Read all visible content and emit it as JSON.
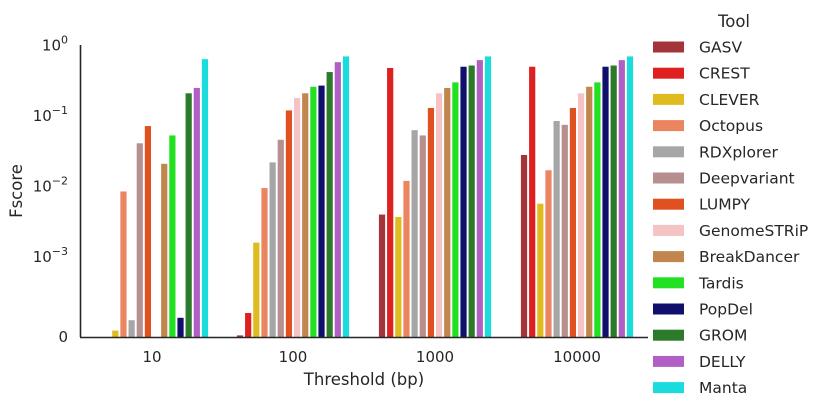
{
  "chart_data": {
    "type": "bar",
    "xlabel": "Threshold (bp)",
    "ylabel": "Fscore",
    "yscale": "symlog",
    "ylim": [
      0,
      1
    ],
    "y_ticks": [
      0,
      0.001,
      0.01,
      0.1,
      1
    ],
    "y_tick_labels": [
      {
        "base": "0",
        "exp": ""
      },
      {
        "base": "10",
        "exp": "−3"
      },
      {
        "base": "10",
        "exp": "−2"
      },
      {
        "base": "10",
        "exp": "−1"
      },
      {
        "base": "10",
        "exp": "0"
      }
    ],
    "categories": [
      "10",
      "100",
      "1000",
      "10000"
    ],
    "legend": {
      "title": "Tool",
      "position": "right"
    },
    "grid": false,
    "series": [
      {
        "name": "GASV",
        "color": "#a3343a",
        "values": [
          0,
          2e-05,
          0.004,
          0.028
        ]
      },
      {
        "name": "CREST",
        "color": "#df2020",
        "values": [
          0,
          0.0003,
          0.48,
          0.5
        ]
      },
      {
        "name": "CLEVER",
        "color": "#e0bb20",
        "values": [
          8e-05,
          0.0016,
          0.0037,
          0.0057
        ]
      },
      {
        "name": "Octopus",
        "color": "#ea8560",
        "values": [
          0.0085,
          0.0095,
          0.012,
          0.017
        ]
      },
      {
        "name": "RDXplorer",
        "color": "#a6a6a6",
        "values": [
          0.00021,
          0.022,
          0.063,
          0.085
        ]
      },
      {
        "name": "Deepvariant",
        "color": "#b88f8f",
        "values": [
          0.041,
          0.046,
          0.053,
          0.075
        ]
      },
      {
        "name": "LUMPY",
        "color": "#e05020",
        "values": [
          0.072,
          0.12,
          0.13,
          0.13
        ]
      },
      {
        "name": "GenomeSTRiP",
        "color": "#f5c3c4",
        "values": [
          0,
          0.18,
          0.21,
          0.21
        ]
      },
      {
        "name": "BreakDancer",
        "color": "#c0864d",
        "values": [
          0.021,
          0.21,
          0.25,
          0.26
        ]
      },
      {
        "name": "Tardis",
        "color": "#22e022",
        "values": [
          0.053,
          0.26,
          0.3,
          0.3
        ]
      },
      {
        "name": "PopDel",
        "color": "#10106c",
        "values": [
          0.00024,
          0.27,
          0.5,
          0.5
        ]
      },
      {
        "name": "GROM",
        "color": "#2b7b2b",
        "values": [
          0.21,
          0.42,
          0.52,
          0.52
        ]
      },
      {
        "name": "DELLY",
        "color": "#b05fc5",
        "values": [
          0.25,
          0.58,
          0.62,
          0.62
        ]
      },
      {
        "name": "Manta",
        "color": "#1bdcdc",
        "values": [
          0.64,
          0.7,
          0.7,
          0.7
        ]
      }
    ]
  }
}
